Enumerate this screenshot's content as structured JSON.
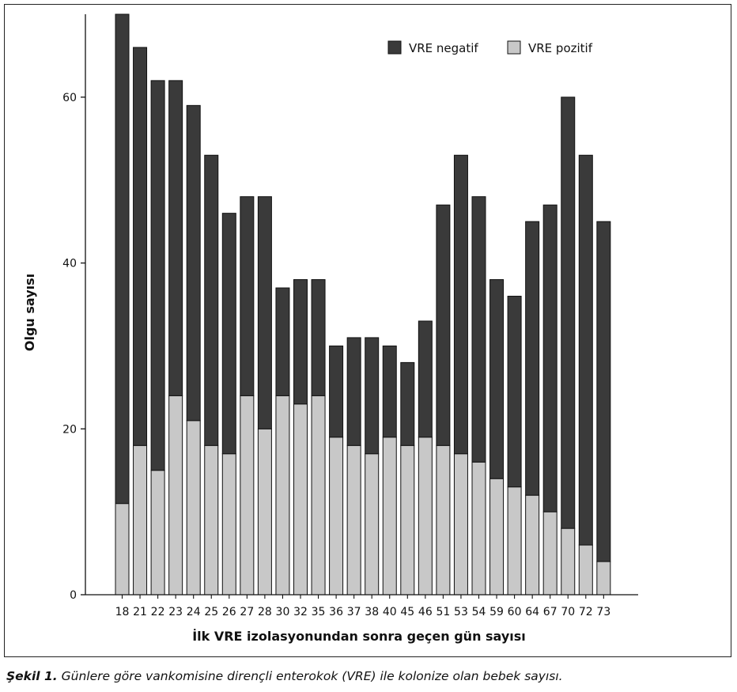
{
  "chart_data": {
    "type": "bar",
    "stacked": true,
    "xlabel": "İlk VRE izolasyonundan sonra geçen gün sayısı",
    "ylabel": "Olgu sayısı",
    "ylim": [
      0,
      70
    ],
    "yticks": [
      0,
      20,
      40,
      60
    ],
    "grid": false,
    "legend_position": "top-right",
    "categories": [
      "18",
      "21",
      "22",
      "23",
      "24",
      "25",
      "26",
      "27",
      "28",
      "30",
      "32",
      "35",
      "36",
      "37",
      "38",
      "40",
      "45",
      "46",
      "51",
      "53",
      "54",
      "59",
      "60",
      "64",
      "67",
      "70",
      "72",
      "73"
    ],
    "series": [
      {
        "name": "VRE pozitif",
        "color": "#c8c8c8",
        "values": [
          11,
          18,
          15,
          24,
          21,
          18,
          17,
          24,
          20,
          24,
          23,
          24,
          19,
          18,
          17,
          19,
          18,
          19,
          18,
          17,
          16,
          14,
          13,
          12,
          10,
          8,
          6,
          4
        ]
      },
      {
        "name": "VRE negatif",
        "color": "#3a3a3a",
        "values": [
          59,
          48,
          47,
          38,
          38,
          35,
          29,
          24,
          28,
          13,
          15,
          14,
          11,
          13,
          14,
          11,
          10,
          14,
          29,
          36,
          32,
          24,
          23,
          33,
          37,
          52,
          47,
          41
        ]
      }
    ]
  },
  "caption": {
    "label": "Şekil 1.",
    "text": " Günlere göre vankomisine dirençli enterokok (VRE) ile kolonize olan bebek sayısı."
  }
}
